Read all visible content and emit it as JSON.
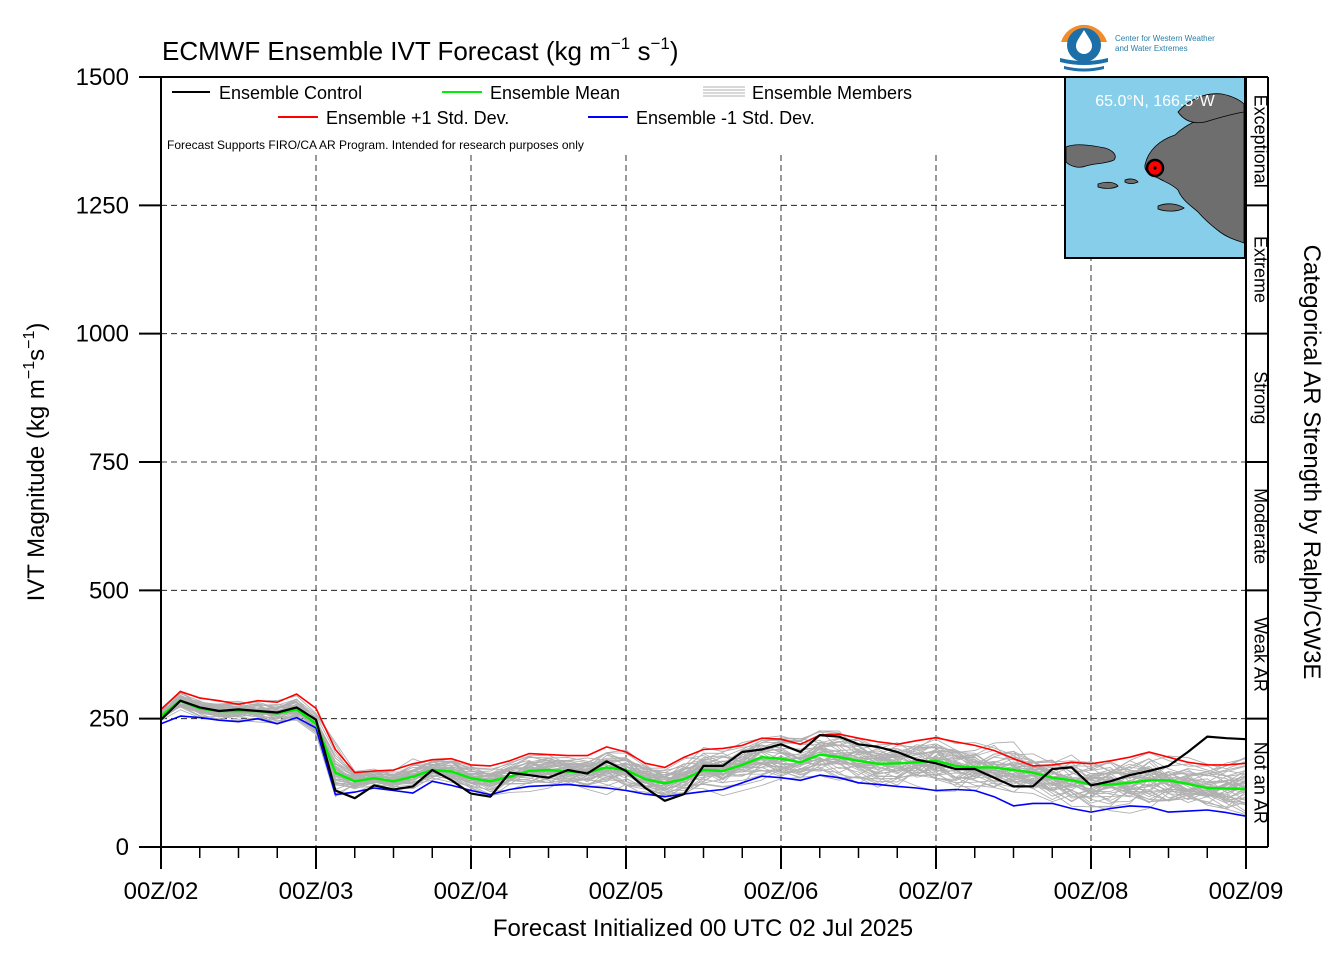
{
  "chart_data": {
    "type": "line",
    "title": "ECMWF Ensemble IVT Forecast (kg m",
    "title_exp1": "−1",
    "title_mid": " s",
    "title_exp2": "−1",
    "title_end": ")",
    "xlabel": "Forecast Initialized 00 UTC 02 Jul 2025",
    "ylabel": "IVT Magnitude (kg m",
    "ylabel_exp1": "−1",
    "ylabel_mid": "s",
    "ylabel_exp2": "−1",
    "ylabel_end": ")",
    "right_label": "Categorical AR Strength by Ralph/CW3E",
    "note": "Forecast Supports FIRO/CA AR Program. Intended for research purposes only",
    "ylim": [
      0,
      1500
    ],
    "xlim": [
      0,
      168
    ],
    "yticks": [
      0,
      250,
      500,
      750,
      1000,
      1250,
      1500
    ],
    "ytick_labels": [
      "0",
      "250",
      "500",
      "750",
      "1000",
      "1250",
      "1500"
    ],
    "xticks": [
      0,
      24,
      48,
      72,
      96,
      120,
      144,
      168
    ],
    "xtick_labels": [
      "00Z/02",
      "00Z/03",
      "00Z/04",
      "00Z/05",
      "00Z/06",
      "00Z/07",
      "00Z/08",
      "00Z/09"
    ],
    "grid": true,
    "legend_placement": "top-left",
    "categories": [
      {
        "label": "Not an AR",
        "from": 0,
        "to": 250
      },
      {
        "label": "Weak AR",
        "from": 250,
        "to": 500
      },
      {
        "label": "Moderate",
        "from": 500,
        "to": 750
      },
      {
        "label": "Strong",
        "from": 750,
        "to": 1000
      },
      {
        "label": "Extreme",
        "from": 1000,
        "to": 1250
      },
      {
        "label": "Exceptional",
        "from": 1250,
        "to": 1500
      }
    ],
    "x": [
      0,
      3,
      6,
      9,
      12,
      15,
      18,
      21,
      24,
      27,
      30,
      33,
      36,
      39,
      42,
      45,
      48,
      51,
      54,
      57,
      60,
      63,
      66,
      69,
      72,
      75,
      78,
      81,
      84,
      87,
      90,
      93,
      96,
      99,
      102,
      105,
      108,
      111,
      114,
      117,
      120,
      123,
      126,
      129,
      132,
      135,
      138,
      141,
      144,
      147,
      150,
      153,
      156,
      159,
      162,
      165,
      168
    ],
    "series": [
      {
        "name": "Ensemble Control",
        "color": "#000000",
        "values": [
          248,
          285,
          272,
          265,
          268,
          265,
          262,
          272,
          248,
          110,
          95,
          120,
          112,
          118,
          150,
          130,
          104,
          98,
          145,
          140,
          135,
          150,
          143,
          167,
          148,
          115,
          90,
          103,
          158,
          158,
          185,
          190,
          200,
          185,
          218,
          215,
          200,
          195,
          185,
          170,
          163,
          152,
          152,
          135,
          118,
          118,
          152,
          155,
          120,
          128,
          140,
          148,
          158,
          185,
          215,
          212,
          210
        ]
      },
      {
        "name": "Ensemble Mean",
        "color": "#00ee00",
        "values": [
          255,
          285,
          270,
          265,
          265,
          265,
          260,
          268,
          240,
          145,
          128,
          134,
          128,
          137,
          150,
          147,
          134,
          128,
          137,
          148,
          150,
          147,
          145,
          155,
          150,
          132,
          124,
          132,
          150,
          148,
          160,
          175,
          172,
          165,
          180,
          175,
          168,
          162,
          163,
          165,
          168,
          158,
          155,
          155,
          150,
          145,
          135,
          130,
          122,
          122,
          125,
          130,
          130,
          123,
          115,
          114,
          113
        ]
      },
      {
        "name": "Ensemble +1 Std. Dev.",
        "color": "#ff0000",
        "values": [
          268,
          303,
          290,
          285,
          278,
          285,
          282,
          298,
          270,
          190,
          145,
          148,
          150,
          162,
          170,
          172,
          160,
          158,
          168,
          182,
          180,
          178,
          178,
          195,
          185,
          163,
          155,
          175,
          190,
          192,
          198,
          212,
          210,
          200,
          218,
          220,
          212,
          205,
          200,
          207,
          213,
          205,
          198,
          188,
          172,
          158,
          160,
          165,
          162,
          168,
          175,
          185,
          175,
          165,
          160,
          160,
          163
        ]
      },
      {
        "name": "Ensemble -1 Std. Dev.",
        "color": "#0000ff",
        "values": [
          240,
          255,
          252,
          247,
          244,
          250,
          240,
          252,
          232,
          102,
          107,
          115,
          110,
          105,
          128,
          120,
          110,
          102,
          112,
          118,
          120,
          122,
          118,
          115,
          110,
          103,
          98,
          103,
          108,
          112,
          125,
          138,
          135,
          130,
          140,
          135,
          125,
          122,
          118,
          115,
          110,
          112,
          110,
          98,
          80,
          85,
          85,
          75,
          68,
          75,
          80,
          78,
          68,
          70,
          72,
          67,
          60
        ]
      }
    ],
    "members": {
      "name": "Ensemble Members",
      "color": "#b0b0b0",
      "count": 50,
      "note_values": "individual member traces spread around the ensemble mean"
    },
    "legend": [
      {
        "label": "Ensemble Control",
        "color": "#000000"
      },
      {
        "label": "Ensemble Mean",
        "color": "#00ee00"
      },
      {
        "label": "Ensemble Members",
        "color": "#b0b0b0"
      },
      {
        "label": "Ensemble +1 Std. Dev.",
        "color": "#ff0000"
      },
      {
        "label": "Ensemble -1 Std. Dev.",
        "color": "#0000ff"
      }
    ]
  },
  "inset_map": {
    "location_label": "65.0°N, 166.5°W",
    "ocean_color": "#87ceeb",
    "land_color": "#6e6e6e",
    "marker_color": "#ff0000"
  },
  "logo": {
    "line1": "Center for Western Weather",
    "line2": "and Water Extremes",
    "orange": "#f28c28",
    "blue": "#1c6fa8"
  }
}
